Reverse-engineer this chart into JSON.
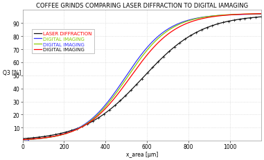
{
  "title": "COFFEE GRINDS COMPARING LASER DIFFRACTION TO DIGITAL IAMAGING",
  "xlabel": "x_area [μm]",
  "ylabel": "Q3 [%]",
  "bg_color": "#ffffff",
  "grid_color": "#cccccc",
  "xlim": [
    0,
    1150
  ],
  "ylim": [
    0,
    100
  ],
  "xticks": [
    0,
    200,
    400,
    600,
    800,
    1000
  ],
  "yticks": [
    10,
    20,
    30,
    40,
    50,
    60,
    70,
    80,
    90
  ],
  "series": [
    {
      "label": "DIGITAL IMAGING",
      "color": "#ff0000",
      "linewidth": 0.9,
      "zorder": 4
    },
    {
      "label": "DIGITAL IMAGING",
      "color": "#88cc00",
      "linewidth": 0.9,
      "zorder": 3
    },
    {
      "label": "DIGITAL IMAGING",
      "color": "#3333ff",
      "linewidth": 0.9,
      "zorder": 3
    },
    {
      "label": "LASER DIFFRACTION",
      "color": "#111111",
      "linewidth": 0.9,
      "zorder": 2
    }
  ],
  "title_fontsize": 6,
  "label_fontsize": 5.5,
  "tick_fontsize": 5.5,
  "legend_fontsize": 5
}
